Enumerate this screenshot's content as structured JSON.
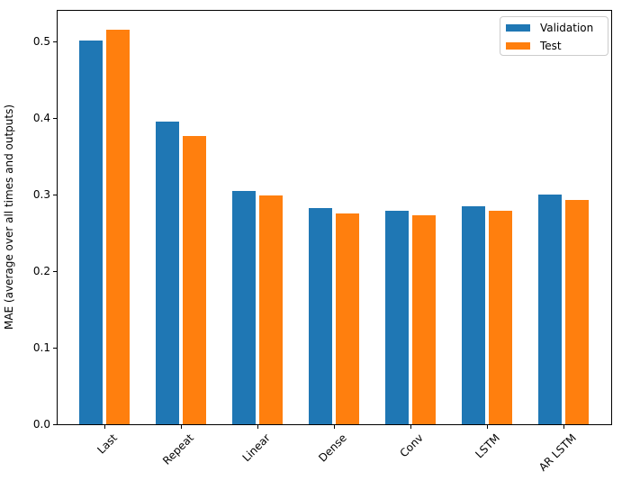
{
  "chart_data": {
    "type": "bar",
    "title": "",
    "xlabel": "",
    "ylabel": "MAE (average over all times and outputs)",
    "categories": [
      "Last",
      "Repeat",
      "Linear",
      "Dense",
      "Conv",
      "LSTM",
      "AR LSTM"
    ],
    "series": [
      {
        "name": "Validation",
        "color": "#1f77b4",
        "values": [
          0.502,
          0.396,
          0.306,
          0.283,
          0.28,
          0.286,
          0.301
        ]
      },
      {
        "name": "Test",
        "color": "#ff7f0e",
        "values": [
          0.516,
          0.377,
          0.299,
          0.276,
          0.274,
          0.279,
          0.294
        ]
      }
    ],
    "ylim": [
      0,
      0.542
    ],
    "yticks": [
      0.0,
      0.1,
      0.2,
      0.3,
      0.4,
      0.5
    ],
    "ytick_labels": [
      "0.0",
      "0.1",
      "0.2",
      "0.3",
      "0.4",
      "0.5"
    ],
    "xtick_rotation_deg": 45,
    "grid": false,
    "legend": {
      "position": "upper right",
      "entries": [
        "Validation",
        "Test"
      ]
    },
    "colors": {
      "axis": "#000000",
      "background": "#ffffff",
      "legend_border": "#cccccc"
    }
  }
}
